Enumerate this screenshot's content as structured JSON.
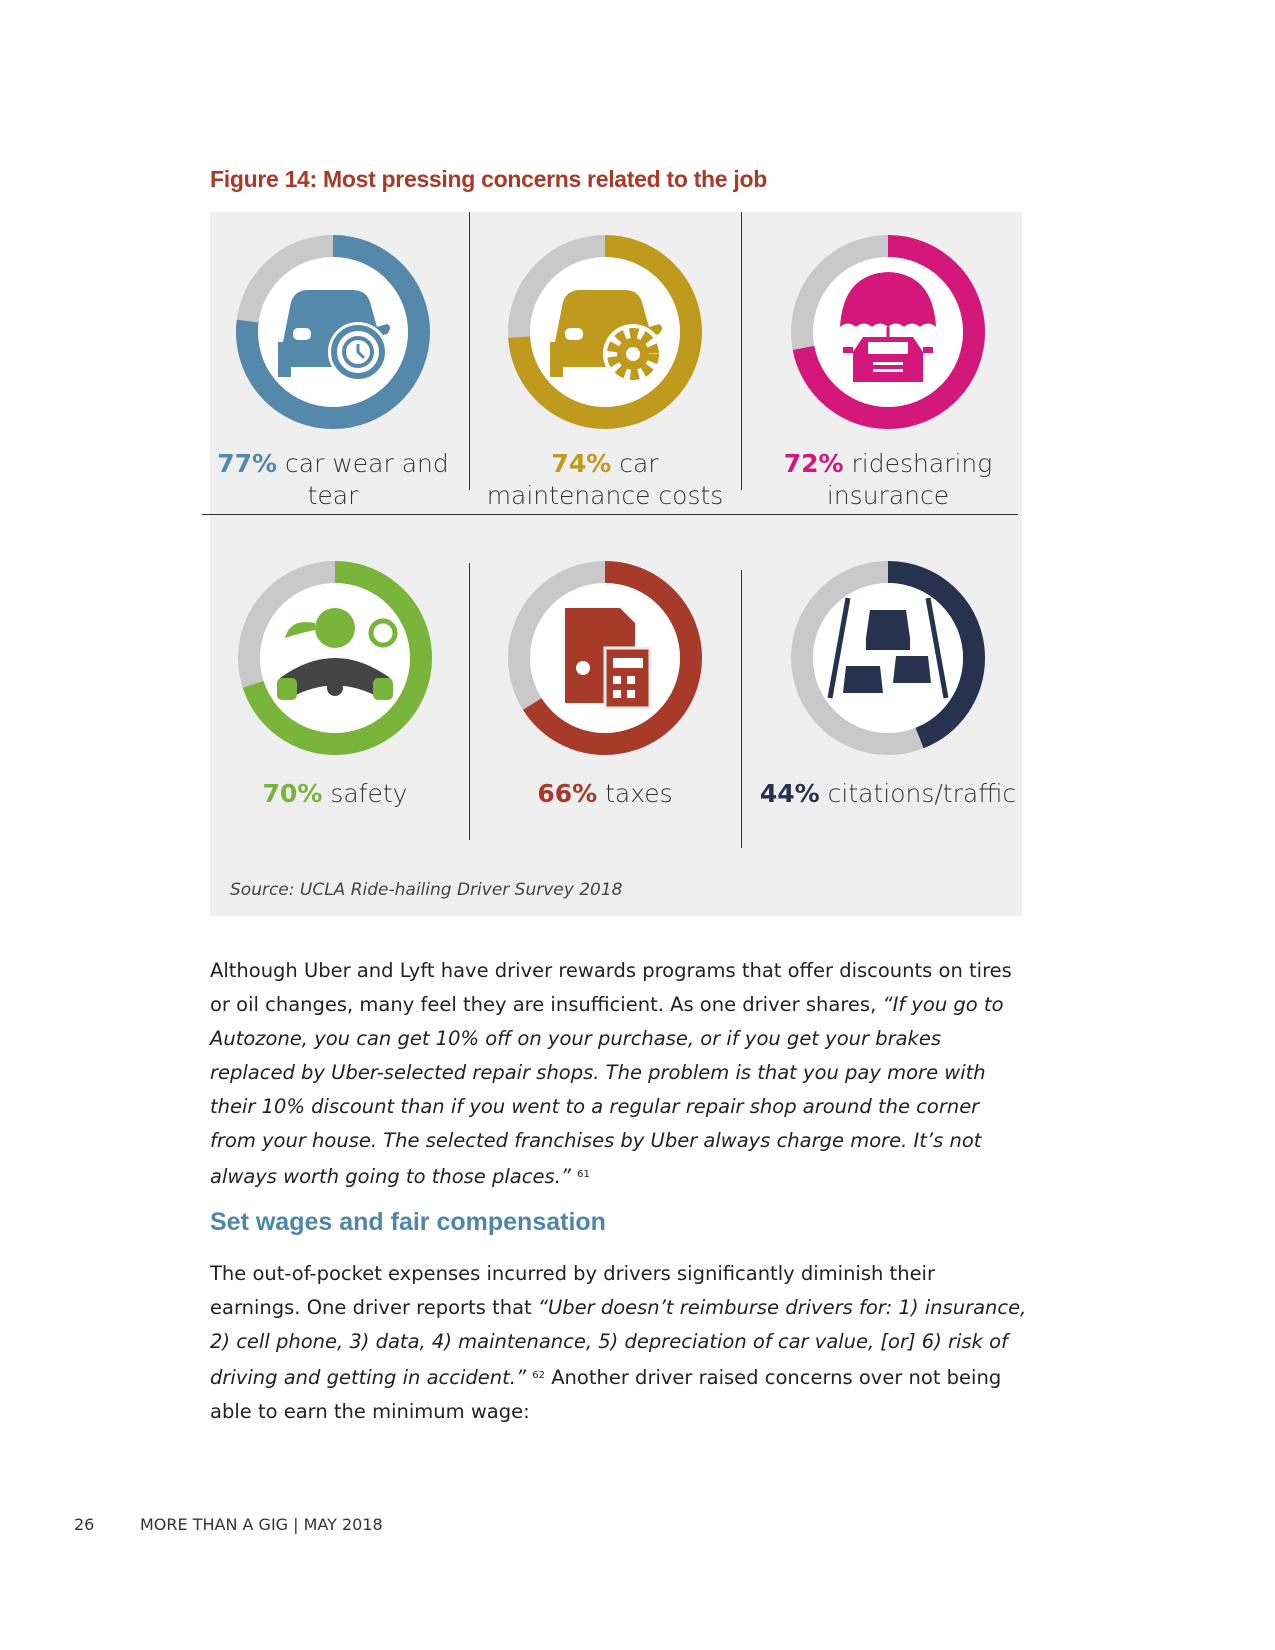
{
  "figure": {
    "title": "Figure 14: Most pressing concerns related to the job",
    "source": "Source: UCLA Ride-hailing Driver Survey 2018",
    "items": [
      {
        "pct": "77%",
        "text": "car wear and tear",
        "line1": " car wear and",
        "line2": "tear",
        "color": "#5589ab",
        "icon": "car-clock-icon"
      },
      {
        "pct": "74%",
        "text": "car maintenance costs",
        "line1": " car",
        "line2": "maintenance costs",
        "color": "#bf9a1c",
        "icon": "car-gear-icon"
      },
      {
        "pct": "72%",
        "text": "ridesharing insurance",
        "line1": " ridesharing",
        "line2": "insurance",
        "color": "#d3177b",
        "icon": "umbrella-car-icon"
      },
      {
        "pct": "70%",
        "text": "safety",
        "line1": " safety",
        "line2": "",
        "color": "#78b53a",
        "icon": "driver-steering-wheel-icon"
      },
      {
        "pct": "66%",
        "text": "taxes",
        "line1": " taxes",
        "line2": "",
        "color": "#a83a2a",
        "icon": "tax-document-calculator-icon"
      },
      {
        "pct": "44%",
        "text": "citations/traffic",
        "line1": " citations/traffic",
        "line2": "",
        "color": "#27324f",
        "icon": "traffic-cars-icon"
      }
    ],
    "remainder_color": "#c9c9c9"
  },
  "chart_data": {
    "type": "pie",
    "title": "Figure 14: Most pressing concerns related to the job",
    "categories": [
      "car wear and tear",
      "car maintenance costs",
      "ridesharing insurance",
      "safety",
      "taxes",
      "citations/traffic"
    ],
    "values": [
      77,
      74,
      72,
      70,
      66,
      44
    ],
    "unit": "%"
  },
  "body": {
    "para1_plain": "Although Uber and Lyft have driver rewards programs that offer discounts on tires or oil changes, many feel they are insufficient. As one driver shares, ",
    "para1_quote": "“If you go to Autozone, you can get 10% off on your purchase, or if you get your brakes replaced by Uber-selected repair shops. The problem is that you pay more with their 10% discount than if you went to a regular repair shop around the corner from your house. The selected franchises by Uber always charge more. It’s not always worth going to those places.”",
    "para1_note": "61",
    "section_heading": "Set wages and fair compensation",
    "para2_plain": "The out-of-pocket expenses incurred by drivers significantly diminish their earnings. One driver reports that ",
    "para2_quote": "“Uber doesn’t reimburse drivers for: 1) insurance, 2) cell phone, 3) data, 4) maintenance, 5) depreciation of car value, [or] 6) risk of driving and getting in accident.”",
    "para2_note": "62",
    "para2_tail": " Another driver raised concerns over not being able to earn the minimum wage:"
  },
  "footer": {
    "page_number": "26",
    "text": "MORE THAN A GIG | MAY 2018"
  }
}
